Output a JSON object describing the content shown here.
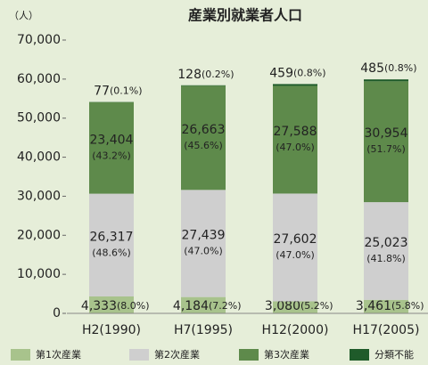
{
  "chart_data": {
    "type": "stacked_bar",
    "title": "産業別就業者人口",
    "y_unit": "（人）",
    "categories": [
      "H2(1990)",
      "H7(1995)",
      "H12(2000)",
      "H17(2005)"
    ],
    "series": [
      {
        "name": "第1次産業",
        "color": "#a8c38c",
        "values": [
          4333,
          4184,
          3080,
          3461
        ],
        "value_labels": [
          "4,333",
          "4,184",
          "3,080",
          "3,461"
        ],
        "share_labels": [
          "(8.0%)",
          "(7.2%)",
          "(5.2%)",
          "(5.8%)"
        ]
      },
      {
        "name": "第2次産業",
        "color": "#cfcfcf",
        "values": [
          26317,
          27439,
          27602,
          25023
        ],
        "value_labels": [
          "26,317",
          "27,439",
          "27,602",
          "25,023"
        ],
        "share_labels": [
          "(48.6%)",
          "(47.0%)",
          "(47.0%)",
          "(41.8%)"
        ]
      },
      {
        "name": "第3次産業",
        "color": "#5e8a4b",
        "values": [
          23404,
          26663,
          27588,
          30954
        ],
        "value_labels": [
          "23,404",
          "26,663",
          "27,588",
          "30,954"
        ],
        "share_labels": [
          "(43.2%)",
          "(45.6%)",
          "(47.0%)",
          "(51.7%)"
        ]
      },
      {
        "name": "分類不能",
        "color": "#1f5b2a",
        "values": [
          77,
          128,
          459,
          485
        ],
        "share_labels": [
          "(0.1%)",
          "(0.2%)",
          "(0.8%)",
          "(0.8%)"
        ]
      }
    ],
    "ylim": [
      0,
      70000
    ],
    "yticks": [
      0,
      {
        "value": 10000,
        "label": "10,000"
      },
      {
        "value": 20000,
        "label": "20,000"
      },
      {
        "value": 30000,
        "label": "30,000"
      },
      {
        "value": 40000,
        "label": "40,000"
      },
      {
        "value": 50000,
        "label": "50,000"
      },
      {
        "value": 60000,
        "label": "60,000"
      },
      {
        "value": 70000,
        "label": "70,000"
      }
    ]
  }
}
